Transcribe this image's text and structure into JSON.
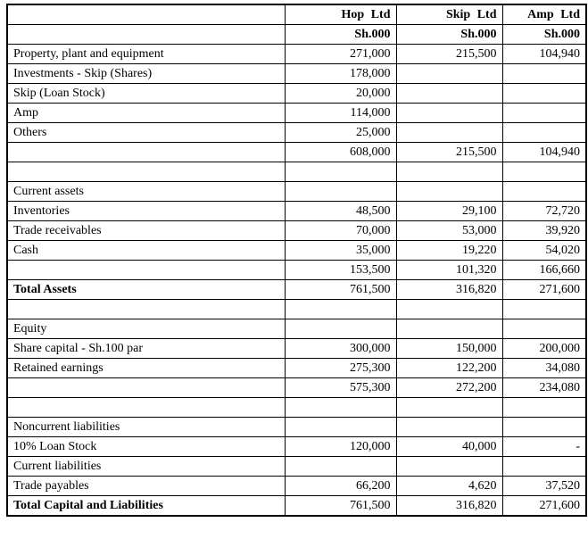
{
  "colors": {
    "background": "#ffffff",
    "border": "#000000",
    "text": "#000000"
  },
  "table": {
    "columns": [
      "",
      "Hop Ltd",
      "Skip Ltd",
      "Amp Ltd"
    ],
    "unit_row": [
      "",
      "Sh.000",
      "Sh.000",
      "Sh.000"
    ],
    "rows": [
      {
        "label": "Property, plant and equipment",
        "indent": false,
        "bold": false,
        "values": [
          "271,000",
          "215,500",
          "104,940"
        ]
      },
      {
        "label": "Investments - Skip (Shares)",
        "indent": false,
        "bold": false,
        "values": [
          "178,000",
          "",
          ""
        ]
      },
      {
        "label": "Skip (Loan Stock)",
        "indent": true,
        "bold": false,
        "values": [
          "20,000",
          "",
          ""
        ]
      },
      {
        "label": "Amp",
        "indent": true,
        "bold": false,
        "values": [
          "114,000",
          "",
          ""
        ]
      },
      {
        "label": "Others",
        "indent": true,
        "bold": false,
        "values": [
          "25,000",
          "",
          ""
        ]
      },
      {
        "label": "",
        "indent": false,
        "bold": false,
        "values": [
          "608,000",
          "215,500",
          "104,940"
        ]
      },
      {
        "label": "",
        "indent": false,
        "bold": false,
        "values": [
          "",
          "",
          ""
        ]
      },
      {
        "label": "Current assets",
        "indent": false,
        "bold": false,
        "values": [
          "",
          "",
          ""
        ]
      },
      {
        "label": "Inventories",
        "indent": false,
        "bold": false,
        "values": [
          "48,500",
          "29,100",
          "72,720"
        ]
      },
      {
        "label": "Trade receivables",
        "indent": false,
        "bold": false,
        "values": [
          "70,000",
          "53,000",
          "39,920"
        ]
      },
      {
        "label": "Cash",
        "indent": false,
        "bold": false,
        "values": [
          "35,000",
          "19,220",
          "54,020"
        ]
      },
      {
        "label": "",
        "indent": false,
        "bold": false,
        "values": [
          "153,500",
          "101,320",
          "166,660"
        ]
      },
      {
        "label": "Total Assets",
        "indent": false,
        "bold": true,
        "values_top": true,
        "values": [
          "761,500",
          "316,820",
          "271,600"
        ]
      },
      {
        "label": "",
        "indent": false,
        "bold": false,
        "values": [
          "",
          "",
          ""
        ]
      },
      {
        "label": "Equity",
        "indent": false,
        "bold": false,
        "values": [
          "",
          "",
          ""
        ]
      },
      {
        "label": "Share capital - Sh.100 par",
        "indent": false,
        "bold": false,
        "values": [
          "300,000",
          "150,000",
          "200,000"
        ]
      },
      {
        "label": "Retained earnings",
        "indent": false,
        "bold": false,
        "values": [
          "275,300",
          "122,200",
          "34,080"
        ]
      },
      {
        "label": "",
        "indent": false,
        "bold": false,
        "values": [
          "575,300",
          "272,200",
          "234,080"
        ]
      },
      {
        "label": "",
        "indent": false,
        "bold": false,
        "values": [
          "",
          "",
          ""
        ]
      },
      {
        "label": "Noncurrent liabilities",
        "indent": false,
        "bold": false,
        "values": [
          "",
          "",
          ""
        ]
      },
      {
        "label": "10% Loan Stock",
        "indent": false,
        "bold": false,
        "values": [
          "120,000",
          "40,000",
          "-"
        ]
      },
      {
        "label": "Current liabilities",
        "indent": false,
        "bold": false,
        "values": [
          "",
          "",
          ""
        ]
      },
      {
        "label": "Trade payables",
        "indent": false,
        "bold": false,
        "values": [
          "66,200",
          "4,620",
          "37,520"
        ]
      },
      {
        "label": "Total Capital and Liabilities",
        "indent": false,
        "bold": true,
        "values": [
          "761,500",
          "316,820",
          "271,600"
        ]
      }
    ]
  }
}
